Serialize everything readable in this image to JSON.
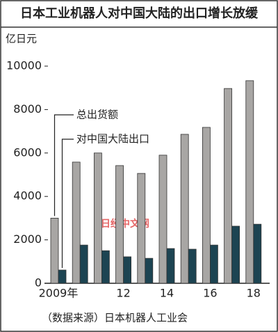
{
  "chart_data": {
    "type": "bar",
    "title": "日本工业机器人对中国大陆的出口增长放缓",
    "y_label": "亿日元",
    "source": "（数据来源）日本机器人工业会",
    "watermark": "日经中文网",
    "categories": [
      "2009年",
      null,
      null,
      "12",
      null,
      "14",
      null,
      "16",
      null,
      "18"
    ],
    "series": [
      {
        "name": "总出货额",
        "color": "#a8a6a4",
        "values": [
          3000,
          5580,
          6000,
          5420,
          5060,
          5900,
          6860,
          7180,
          8970,
          9330
        ]
      },
      {
        "name": "对中国大陆出口",
        "color": "#1d4452",
        "values": [
          610,
          1760,
          1500,
          1220,
          1150,
          1600,
          1570,
          1760,
          2630,
          2720
        ]
      }
    ],
    "ylim": [
      0,
      10000
    ],
    "yticks": [
      0,
      2000,
      4000,
      6000,
      8000,
      10000
    ],
    "grid": false
  }
}
